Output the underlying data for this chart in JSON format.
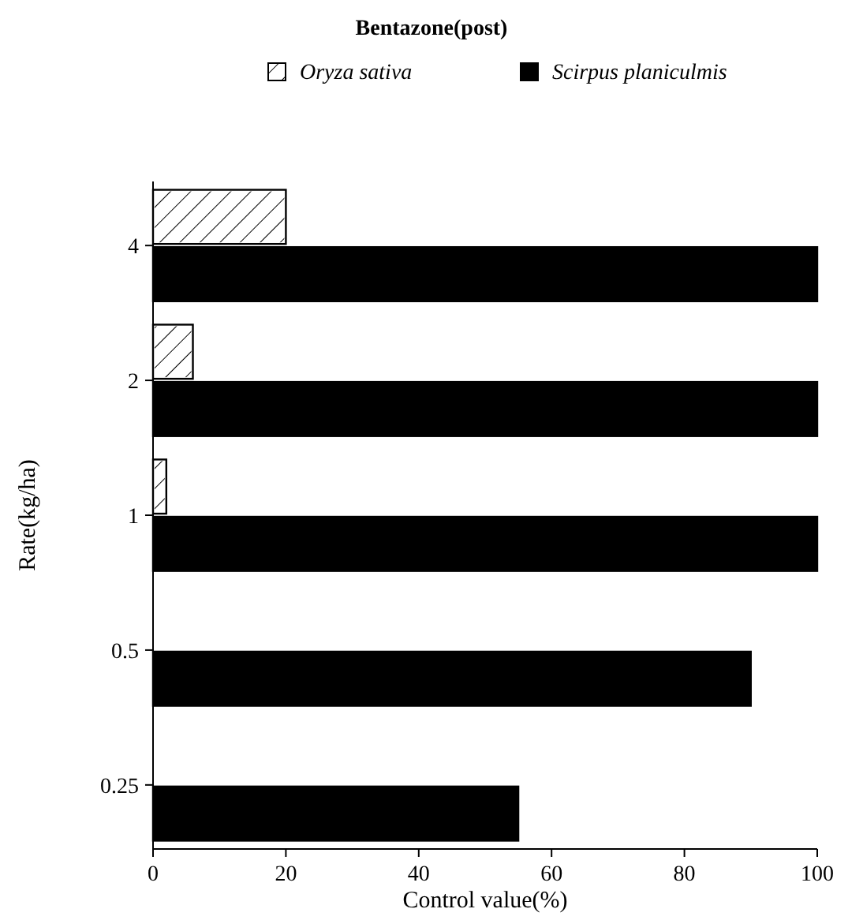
{
  "chart_data": {
    "type": "bar",
    "orientation": "horizontal",
    "title": "Bentazone(post)",
    "xlabel": "Control value(%)",
    "ylabel": "Rate(kg/ha)",
    "categories": [
      "4",
      "2",
      "1",
      "0.5",
      "0.25"
    ],
    "series": [
      {
        "name": "Oryza sativa",
        "color": "#ffffff",
        "values": [
          20,
          6,
          2,
          0,
          0
        ]
      },
      {
        "name": "Scirpus planiculmis",
        "color": "#000000",
        "values": [
          100,
          100,
          100,
          90,
          55
        ]
      }
    ],
    "xlim": [
      0,
      100
    ],
    "xticks": [
      0,
      20,
      40,
      60,
      80,
      100
    ],
    "grid": false,
    "legend": "top"
  }
}
